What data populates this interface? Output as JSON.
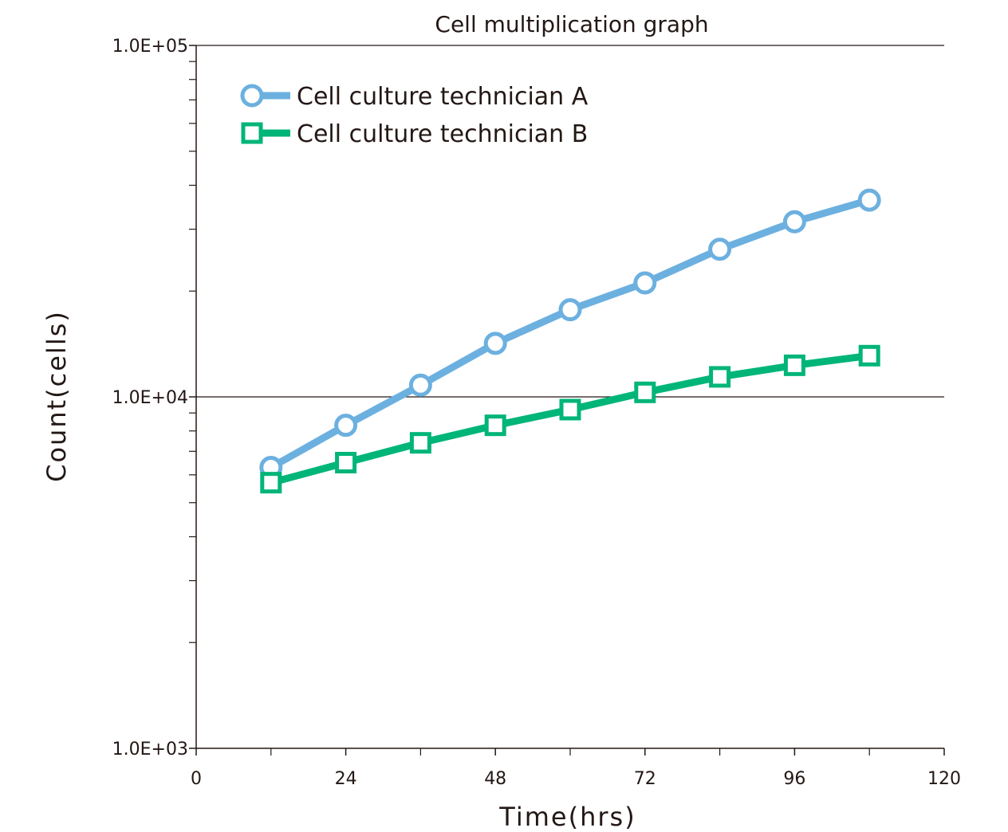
{
  "chart_data": {
    "type": "line",
    "title": "Cell multiplication graph",
    "xlabel": "Time(hrs)",
    "ylabel": "Count(cells)",
    "xlim": [
      0,
      120
    ],
    "ylim": [
      1000,
      100000
    ],
    "yscale": "log",
    "x_ticks": [
      0,
      24,
      48,
      72,
      96,
      120
    ],
    "x_tick_labels": [
      "0",
      "24",
      "48",
      "72",
      "96",
      "120"
    ],
    "x_minor_ticks": [
      12,
      36,
      60,
      84,
      108
    ],
    "y_ticks": [
      1000,
      10000,
      100000
    ],
    "y_tick_labels": [
      "1.0E+03",
      "1.0E+04",
      "1.0E+05"
    ],
    "gridlines_y": [
      10000,
      100000
    ],
    "legend_position": "top-left",
    "series": [
      {
        "name": "Cell culture technician A",
        "marker": "circle",
        "color": "#6cb0e0",
        "x": [
          12,
          24,
          36,
          48,
          60,
          72,
          84,
          96,
          108
        ],
        "y": [
          6300,
          8300,
          10800,
          14200,
          17700,
          21100,
          26300,
          31500,
          36300
        ]
      },
      {
        "name": "Cell culture technician B",
        "marker": "square",
        "color": "#00b578",
        "x": [
          12,
          24,
          36,
          48,
          60,
          72,
          84,
          96,
          108
        ],
        "y": [
          5700,
          6500,
          7400,
          8300,
          9200,
          10300,
          11400,
          12300,
          13100
        ]
      }
    ]
  }
}
